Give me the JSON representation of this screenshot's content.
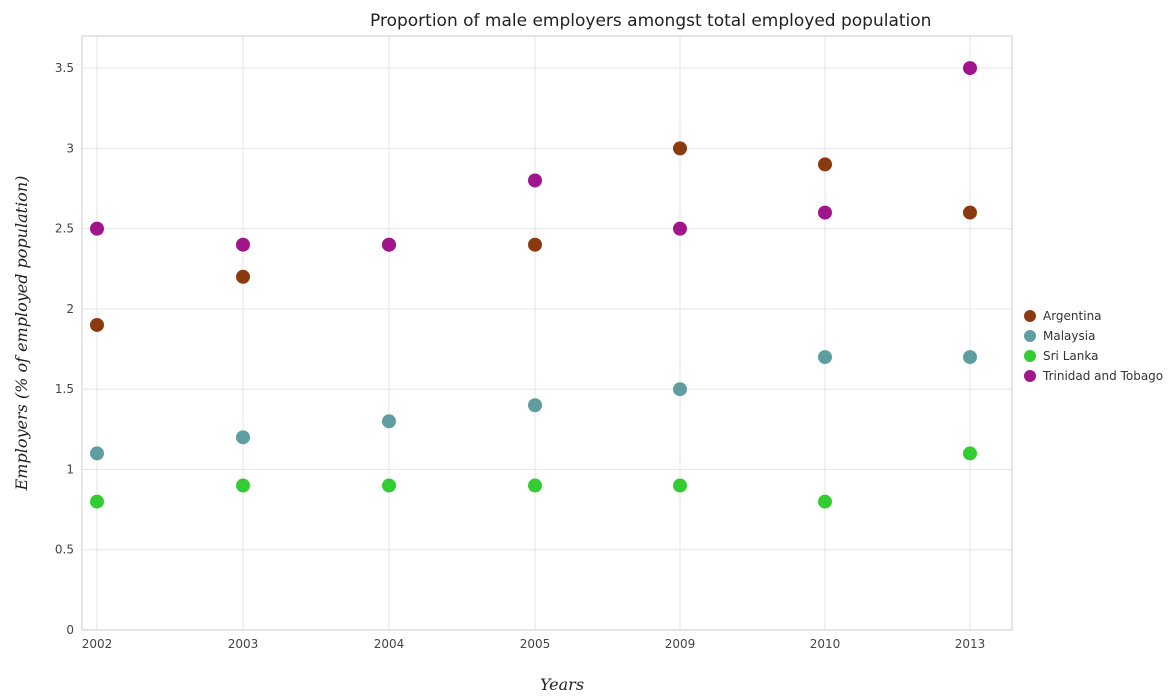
{
  "chart_data": {
    "type": "scatter",
    "title": "Proportion of male employers amongst total employed population",
    "xlabel": "Years",
    "ylabel": "Employers (% of employed population)",
    "categories": [
      "2002",
      "2003",
      "2004",
      "2005",
      "2009",
      "2010",
      "2013"
    ],
    "ylim": [
      0,
      3.7
    ],
    "yticks": [
      0,
      0.5,
      1,
      1.5,
      2,
      2.5,
      3,
      3.5
    ],
    "ytick_labels": [
      "0",
      "0.5",
      "1",
      "1.5",
      "2",
      "2.5",
      "3",
      "3.5"
    ],
    "grid": true,
    "legend_position": "right",
    "series": [
      {
        "name": "Argentina",
        "color": "#8B3A0F",
        "values": [
          1.9,
          2.2,
          2.4,
          2.4,
          3.0,
          2.9,
          2.6
        ]
      },
      {
        "name": "Malaysia",
        "color": "#5F9EA0",
        "values": [
          1.1,
          1.2,
          1.3,
          1.4,
          1.5,
          1.7,
          1.7
        ]
      },
      {
        "name": "Sri Lanka",
        "color": "#32CD32",
        "values": [
          0.8,
          0.9,
          0.9,
          0.9,
          0.9,
          0.8,
          1.1
        ]
      },
      {
        "name": "Trinidad and Tobago",
        "color": "#A0148C",
        "values": [
          2.5,
          2.4,
          2.4,
          2.8,
          2.5,
          2.6,
          3.5
        ]
      }
    ]
  }
}
